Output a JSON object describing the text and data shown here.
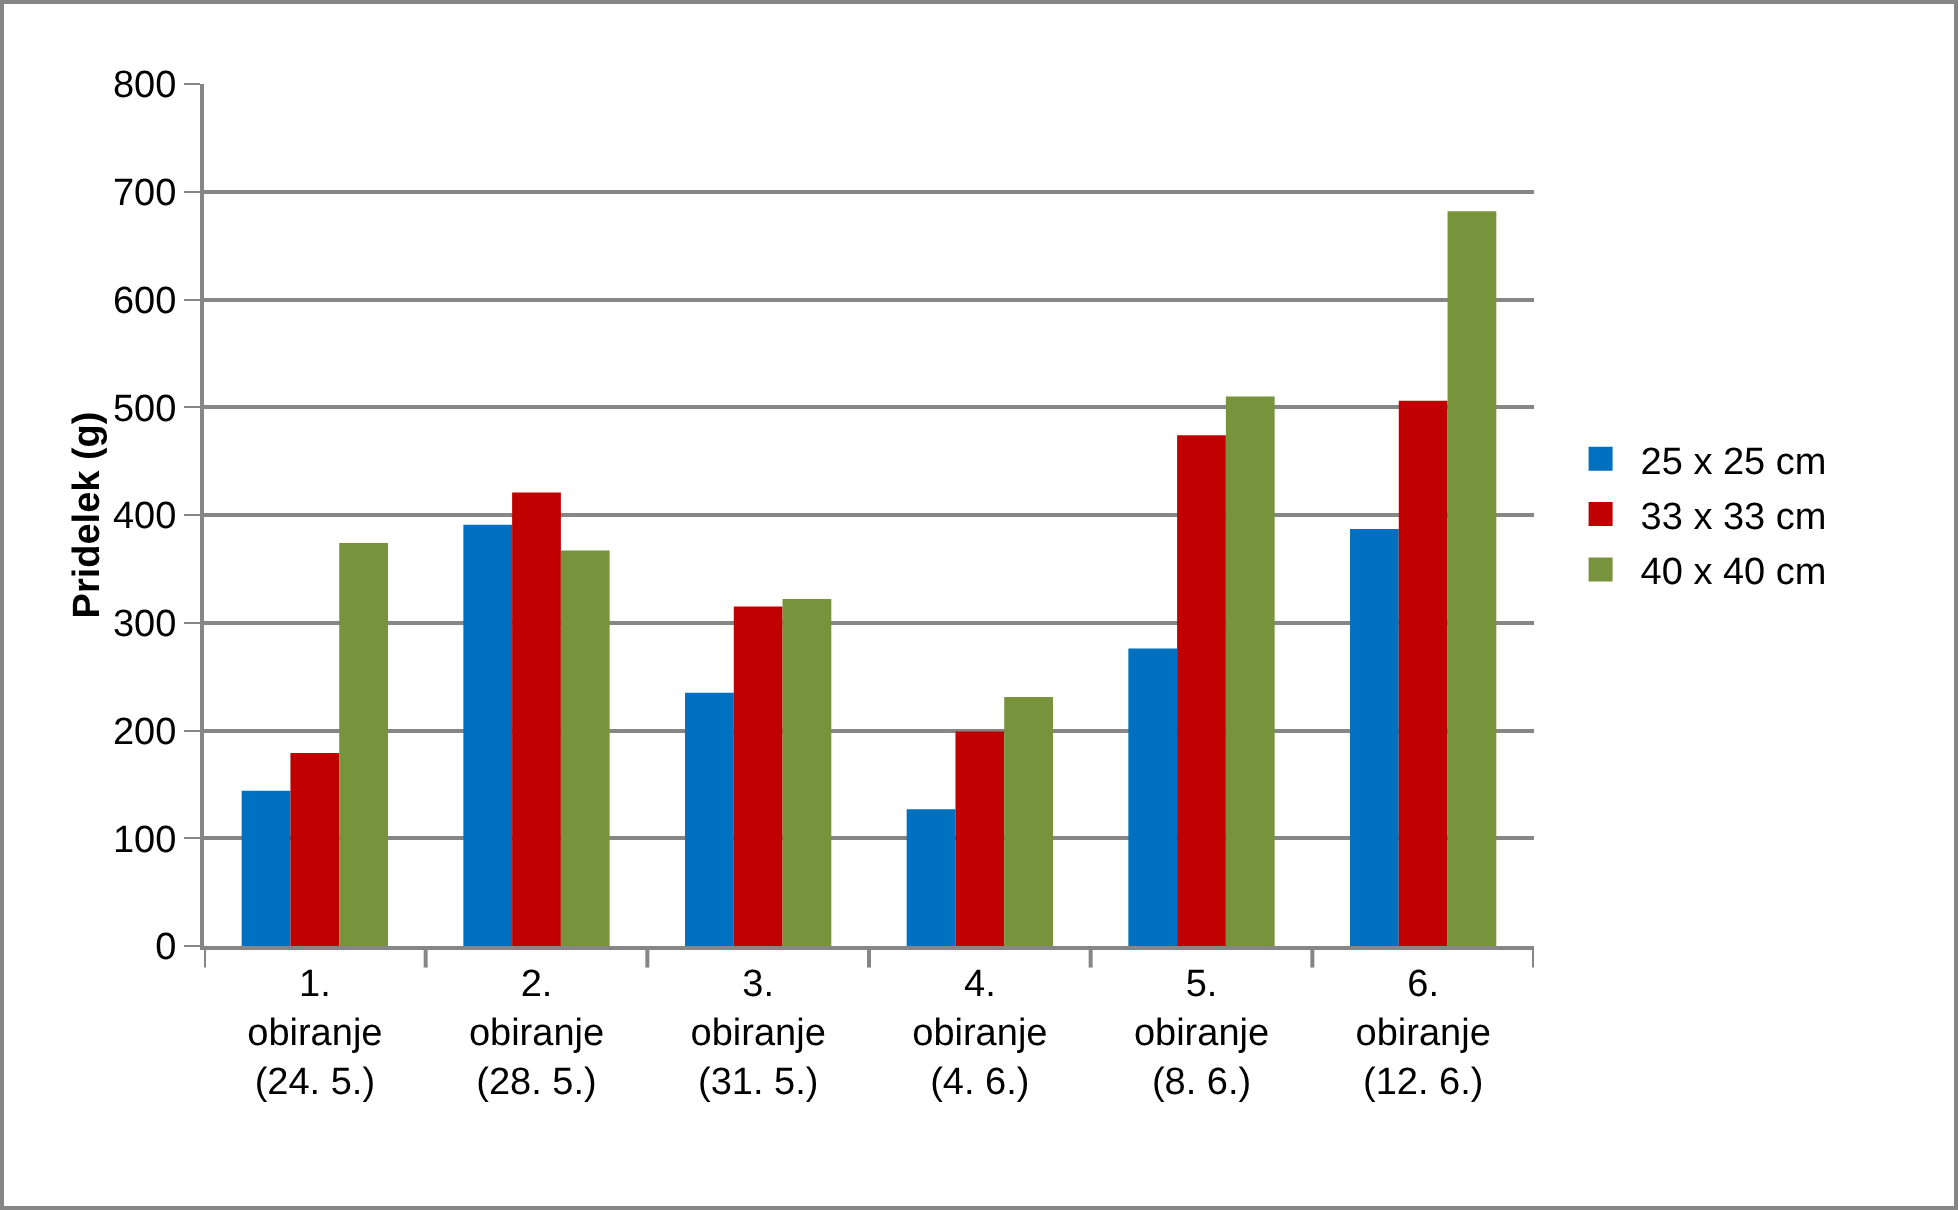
{
  "chart_data": {
    "type": "bar",
    "ylabel": "Pridelek (g)",
    "categories": [
      "1.\nobiranje\n(24. 5.)",
      "2.\nobiranje\n(28. 5.)",
      "3.\nobiranje\n(31. 5.)",
      "4.\nobiranje\n(4. 6.)",
      "5.\nobiranje\n(8. 6.)",
      "6.\nobiranje\n(12. 6.)"
    ],
    "series": [
      {
        "name": "25 x 25 cm",
        "color": "#0070c0",
        "values": [
          144,
          391,
          235,
          127,
          276,
          387
        ]
      },
      {
        "name": "33 x 33 cm",
        "color": "#c00000",
        "values": [
          179,
          421,
          315,
          199,
          474,
          506
        ]
      },
      {
        "name": "40 x 40 cm",
        "color": "#77933c",
        "values": [
          374,
          367,
          322,
          231,
          510,
          682
        ]
      }
    ],
    "ylim": [
      0,
      800
    ],
    "yticks": [
      0,
      100,
      200,
      300,
      400,
      500,
      600,
      700,
      800
    ],
    "grid": "y",
    "legend": "right"
  }
}
